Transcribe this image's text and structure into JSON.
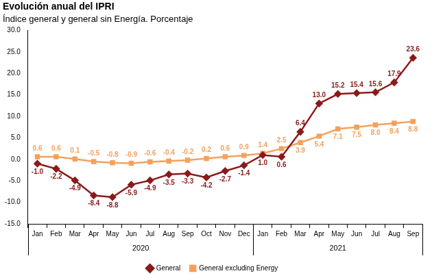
{
  "chart_data": {
    "type": "line",
    "title": "Evolución anual del IPRI",
    "subtitle": "Índice general y general sin Energía. Porcentaje",
    "categories": [
      "Jan",
      "Feb",
      "Mar",
      "Apr",
      "May",
      "Jun",
      "Jul",
      "Aug",
      "Sep",
      "Oct",
      "Nov",
      "Dec",
      "Jan",
      "Feb",
      "Mar",
      "Apr",
      "May",
      "Jun",
      "Jul",
      "Aug",
      "Sep"
    ],
    "year_groups": [
      {
        "label": "2020",
        "count": 12
      },
      {
        "label": "2021",
        "count": 9
      }
    ],
    "series": [
      {
        "name": "General",
        "color": "#8b1a1a",
        "marker": "diamond",
        "values": [
          -1.0,
          -2.2,
          -4.9,
          -8.4,
          -8.8,
          -5.9,
          -4.9,
          -3.5,
          -3.3,
          -4.2,
          -2.7,
          -1.4,
          1.0,
          0.6,
          6.4,
          13.0,
          15.2,
          15.4,
          15.6,
          17.9,
          23.6
        ],
        "value_labels": [
          "-1.0",
          "-2.2",
          "-4.9",
          "-8.4",
          "-8.8",
          "-5.9",
          "-4.9",
          "-3.5",
          "-3.3",
          "-4.2",
          "-2.7",
          "-1.4",
          "1.0",
          "0.6",
          "6.4",
          "13.0",
          "15.2",
          "15.4",
          "15.6",
          "17.9",
          "23.6"
        ]
      },
      {
        "name": "General excluding Energy",
        "color": "#f4a15d",
        "marker": "square",
        "values": [
          0.6,
          0.6,
          0.1,
          -0.5,
          -0.8,
          -0.9,
          -0.6,
          -0.4,
          -0.2,
          0.2,
          0.6,
          0.9,
          1.4,
          2.5,
          3.9,
          5.4,
          7.1,
          7.5,
          8.0,
          8.4,
          8.8
        ],
        "value_labels": [
          "0.6",
          "0.6",
          "0.1",
          "-0.5",
          "-0.8",
          "-0.9",
          "-0.6",
          "-0.4",
          "-0.2",
          "0.2",
          "0.6",
          "0.9",
          "1.4",
          "2.5",
          "3.9",
          "5.4",
          "7.1",
          "7.5",
          "8.0",
          "8.4",
          "8.8"
        ]
      }
    ],
    "ylim": [
      -15,
      30
    ],
    "yticks": [
      {
        "value": -15,
        "label": "-15.0"
      },
      {
        "value": -10,
        "label": "-10.0"
      },
      {
        "value": -5,
        "label": "-5.0"
      },
      {
        "value": 0,
        "label": "0.0"
      },
      {
        "value": 5,
        "label": "5.0"
      },
      {
        "value": 10,
        "label": "10.0"
      },
      {
        "value": 15,
        "label": "15.0"
      },
      {
        "value": 20,
        "label": "20.0"
      },
      {
        "value": 25,
        "label": "25.0"
      },
      {
        "value": 30,
        "label": "30.0"
      }
    ],
    "grid": false,
    "data_labels": true,
    "legend": "bottom"
  }
}
